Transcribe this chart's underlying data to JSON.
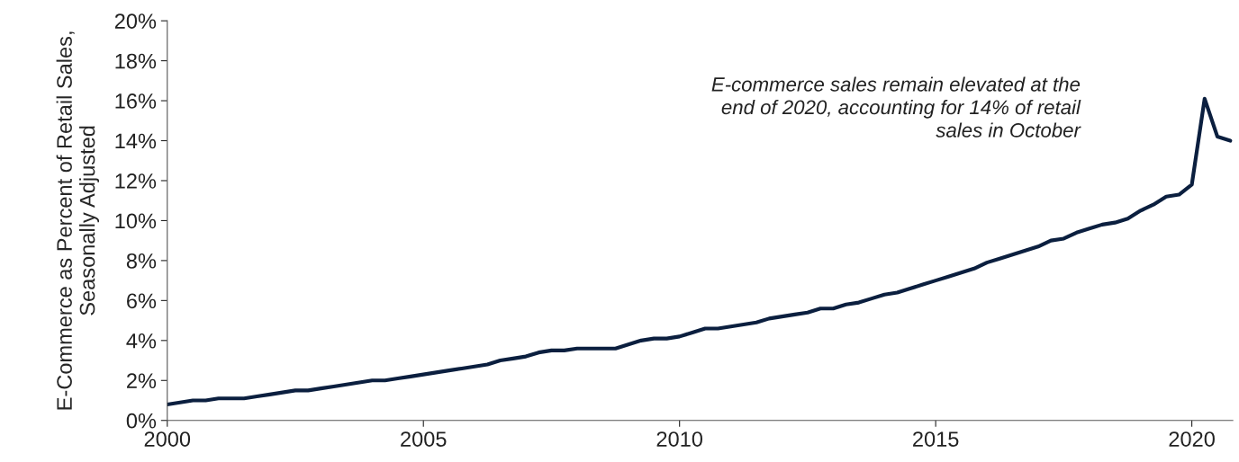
{
  "chart_data": {
    "type": "line",
    "ylabel": "E-Commerce as Percent of Retail Sales,\nSeasonally Adjusted",
    "annotations": [
      "E-commerce sales remain elevated at the\nend of 2020, accounting for 14% of retail\nsales in October"
    ],
    "x": [
      2000,
      2000.25,
      2000.5,
      2000.75,
      2001,
      2001.25,
      2001.5,
      2001.75,
      2002,
      2002.25,
      2002.5,
      2002.75,
      2003,
      2003.25,
      2003.5,
      2003.75,
      2004,
      2004.25,
      2004.5,
      2004.75,
      2005,
      2005.25,
      2005.5,
      2005.75,
      2006,
      2006.25,
      2006.5,
      2006.75,
      2007,
      2007.25,
      2007.5,
      2007.75,
      2008,
      2008.25,
      2008.5,
      2008.75,
      2009,
      2009.25,
      2009.5,
      2009.75,
      2010,
      2010.25,
      2010.5,
      2010.75,
      2011,
      2011.25,
      2011.5,
      2011.75,
      2012,
      2012.25,
      2012.5,
      2012.75,
      2013,
      2013.25,
      2013.5,
      2013.75,
      2014,
      2014.25,
      2014.5,
      2014.75,
      2015,
      2015.25,
      2015.5,
      2015.75,
      2016,
      2016.25,
      2016.5,
      2016.75,
      2017,
      2017.25,
      2017.5,
      2017.75,
      2018,
      2018.25,
      2018.5,
      2018.75,
      2019,
      2019.25,
      2019.5,
      2019.75,
      2020,
      2020.25,
      2020.5,
      2020.75
    ],
    "series": [
      {
        "color": "#0b1f3f",
        "values": [
          0.8,
          0.9,
          1.0,
          1.0,
          1.1,
          1.1,
          1.1,
          1.2,
          1.3,
          1.4,
          1.5,
          1.5,
          1.6,
          1.7,
          1.8,
          1.9,
          2.0,
          2.0,
          2.1,
          2.2,
          2.3,
          2.4,
          2.5,
          2.6,
          2.7,
          2.8,
          3.0,
          3.1,
          3.2,
          3.4,
          3.5,
          3.5,
          3.6,
          3.6,
          3.6,
          3.6,
          3.8,
          4.0,
          4.1,
          4.1,
          4.2,
          4.4,
          4.6,
          4.6,
          4.7,
          4.8,
          4.9,
          5.1,
          5.2,
          5.3,
          5.4,
          5.6,
          5.6,
          5.8,
          5.9,
          6.1,
          6.3,
          6.4,
          6.6,
          6.8,
          7.0,
          7.2,
          7.4,
          7.6,
          7.9,
          8.1,
          8.3,
          8.5,
          8.7,
          9.0,
          9.1,
          9.4,
          9.6,
          9.8,
          9.9,
          10.1,
          10.5,
          10.8,
          11.2,
          11.3,
          11.8,
          16.1,
          14.2,
          14.0
        ]
      }
    ],
    "xlim": [
      2000,
      2020.8
    ],
    "xticks": [
      2000,
      2005,
      2010,
      2015,
      2020
    ],
    "ylim": [
      0,
      20
    ],
    "yticks": [
      {
        "value": 0,
        "label": "0%"
      },
      {
        "value": 2,
        "label": "2%"
      },
      {
        "value": 4,
        "label": "4%"
      },
      {
        "value": 6,
        "label": "6%"
      },
      {
        "value": 8,
        "label": "8%"
      },
      {
        "value": 10,
        "label": "10%"
      },
      {
        "value": 12,
        "label": "12%"
      },
      {
        "value": 14,
        "label": "14%"
      },
      {
        "value": 16,
        "label": "16%"
      },
      {
        "value": 18,
        "label": "18%"
      },
      {
        "value": 20,
        "label": "20%"
      }
    ],
    "grid": false,
    "marker": "none",
    "line_style": "solid"
  }
}
